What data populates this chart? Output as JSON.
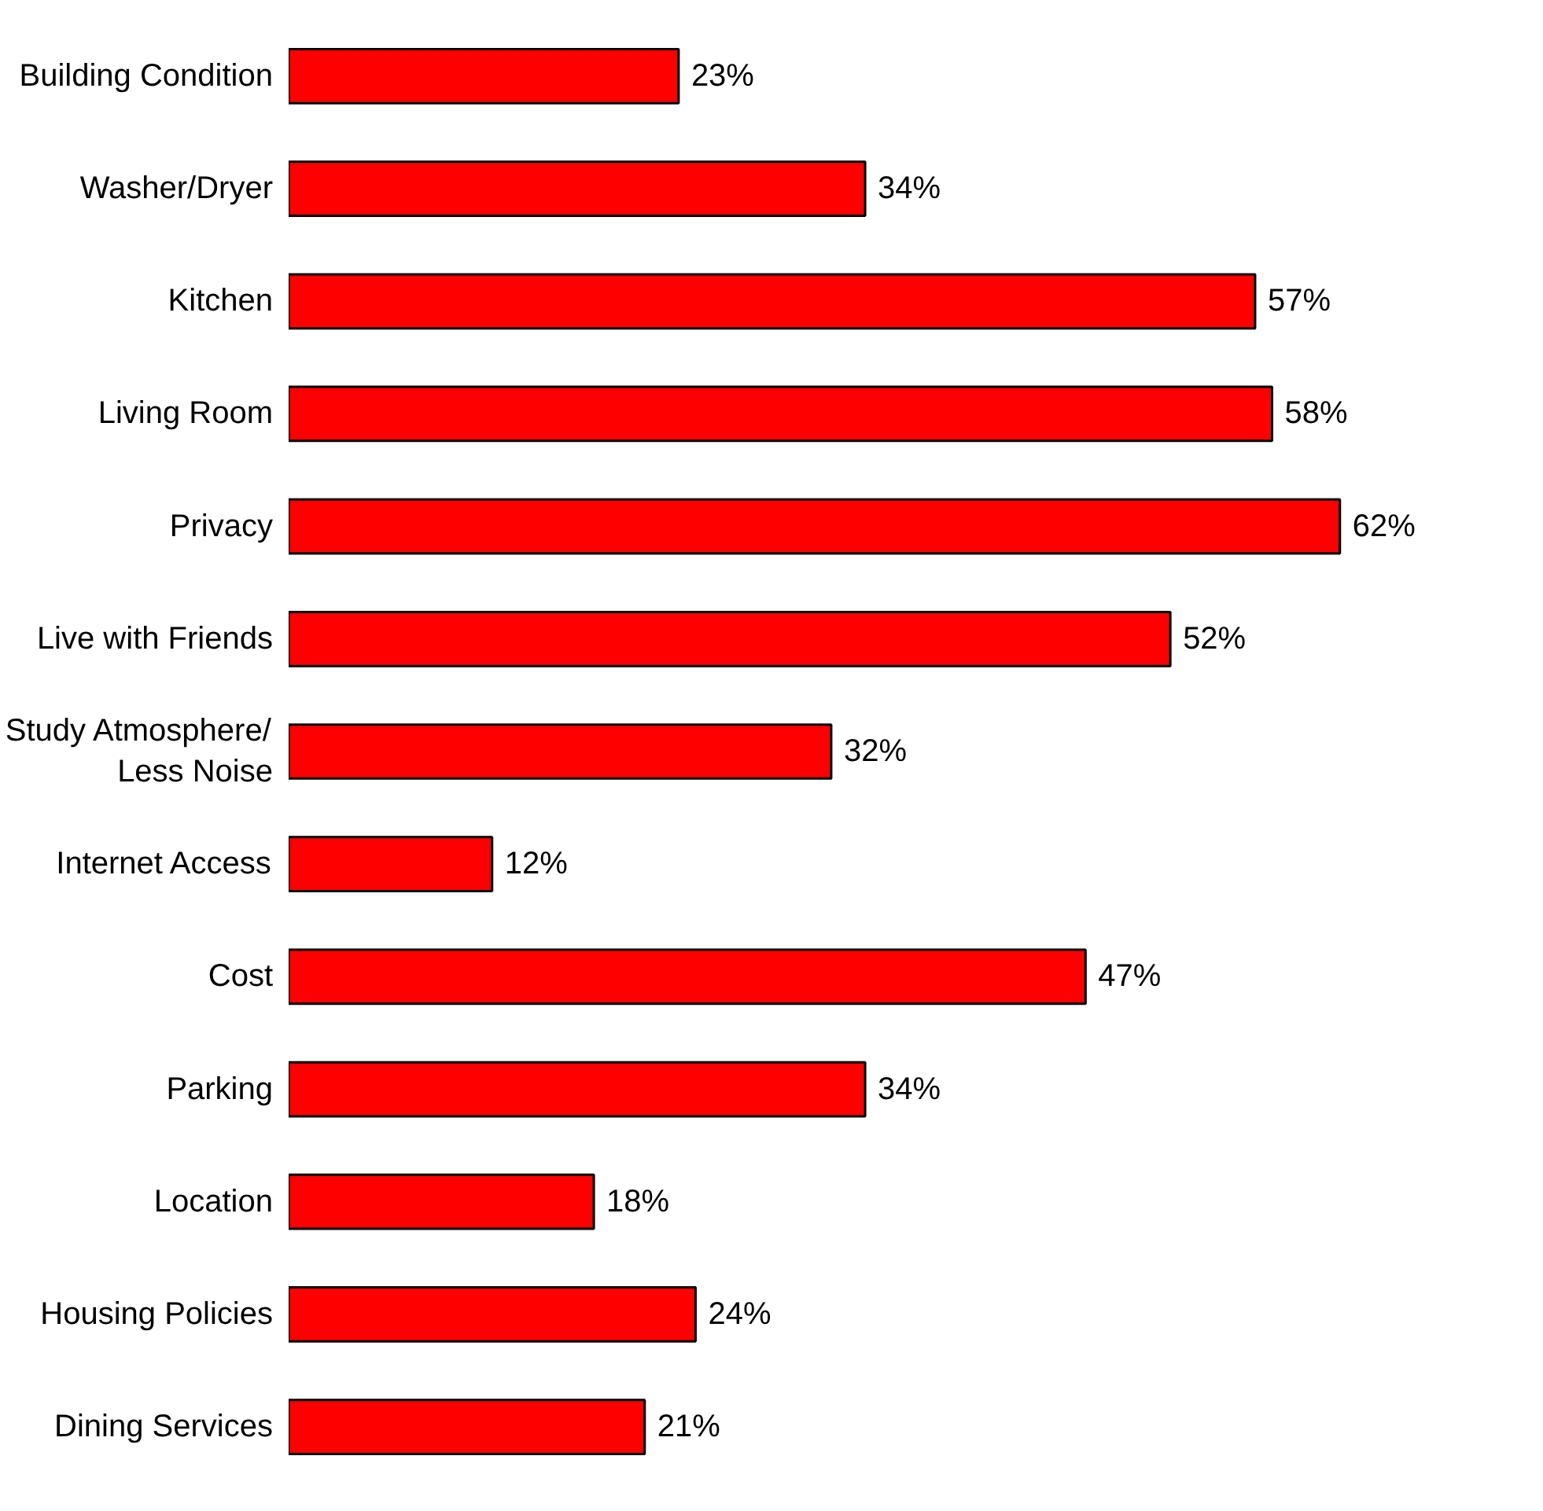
{
  "chart_data": {
    "type": "bar",
    "orientation": "horizontal",
    "categories": [
      "Building Condition",
      "Washer/Dryer",
      "Kitchen",
      "Living Room",
      "Privacy",
      "Live with Friends",
      "Study Atmosphere/\nLess Noise",
      "Internet Access",
      "Cost",
      "Parking",
      "Location",
      "Housing Policies",
      "Dining Services"
    ],
    "values": [
      23,
      34,
      57,
      58,
      62,
      52,
      32,
      12,
      47,
      34,
      18,
      24,
      21
    ],
    "value_labels": [
      "23%",
      "34%",
      "57%",
      "58%",
      "62%",
      "52%",
      "32%",
      "12%",
      "47%",
      "34%",
      "18%",
      "24%",
      "21%"
    ],
    "color": "#ff0000",
    "grid": false
  }
}
